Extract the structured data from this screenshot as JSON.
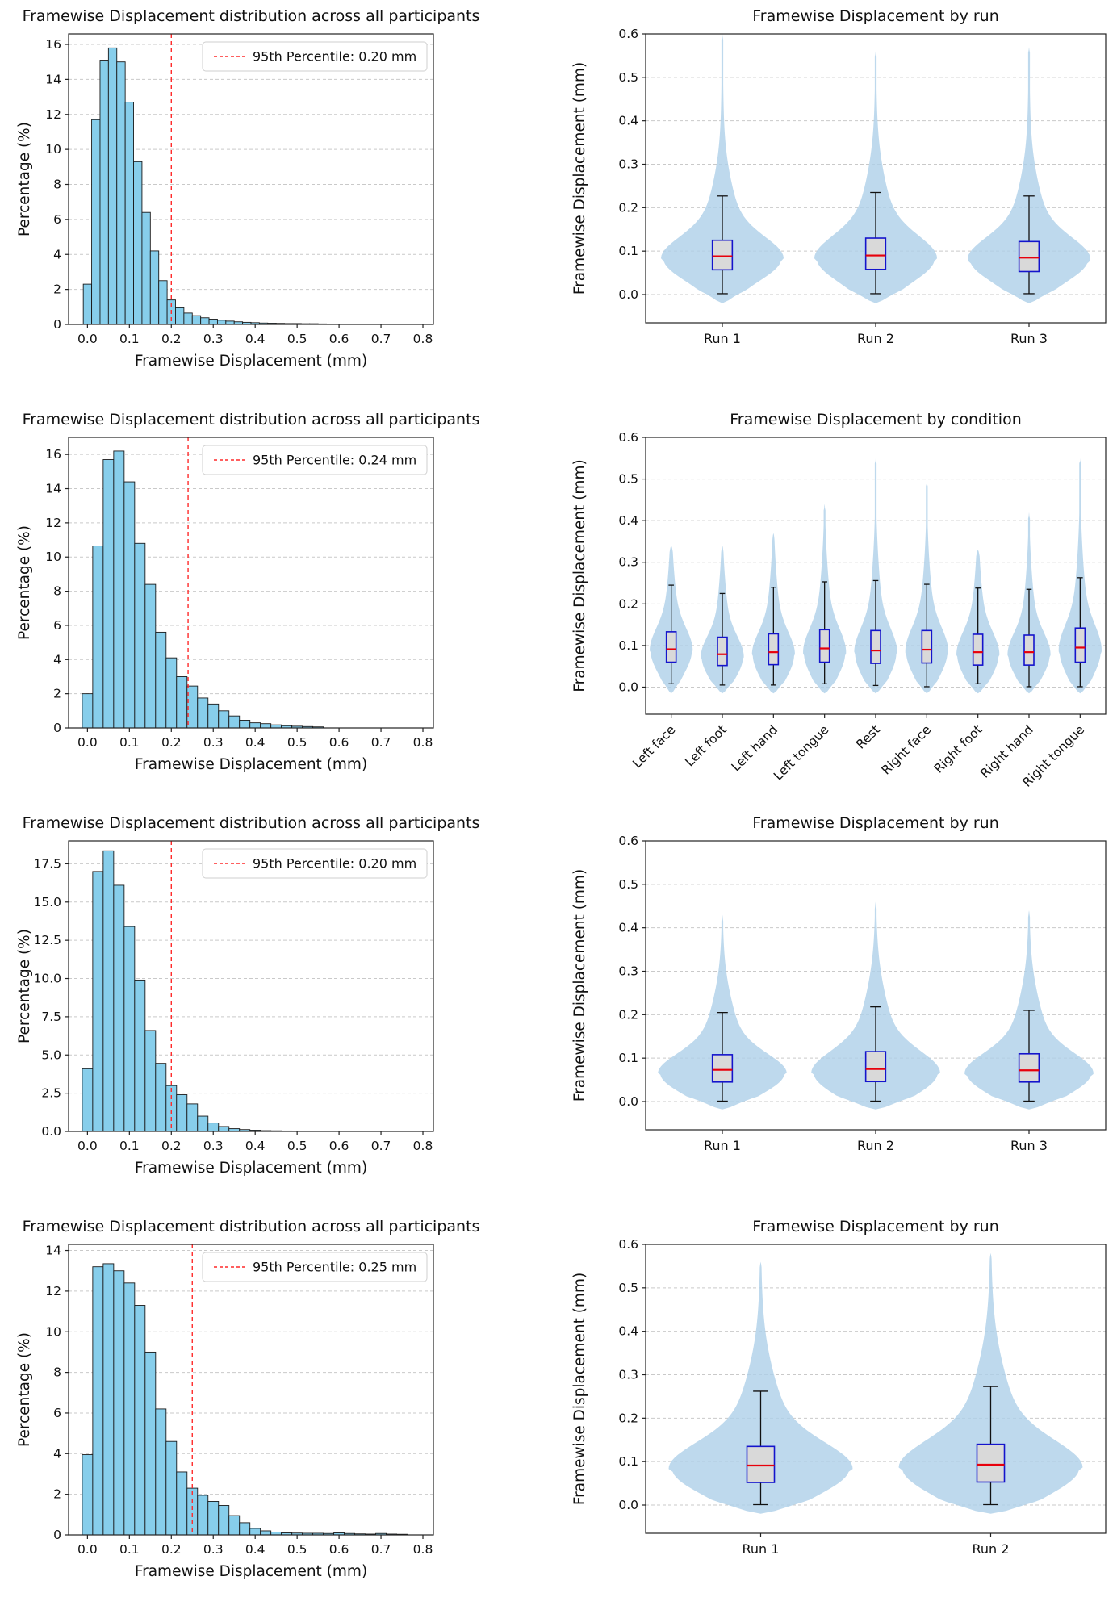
{
  "styles": {
    "bar_fill": "#87CEEB",
    "bar_edge": "#1a1a1a",
    "percentile_color": "#ff2a2a",
    "violin_fill": "#AECFE8",
    "box_fill": "#D9D9D9",
    "box_edge": "#1414CC",
    "median_color": "#E8000B",
    "whisker_color": "#111111",
    "grid_color": "#c9c9c9",
    "spine_color": "#222222",
    "text_color": "#111111"
  },
  "chart_data": [
    {
      "type": "histogram",
      "title": "Framewise Displacement distribution across all participants",
      "xlabel": "Framewise Displacement (mm)",
      "ylabel": "Percentage (%)",
      "legend": "95th Percentile: 0.20 mm",
      "percentile_value": 0.2,
      "bin_start": -0.01,
      "bin_width": 0.02,
      "values": [
        2.3,
        11.7,
        15.1,
        15.8,
        15.0,
        12.7,
        9.3,
        6.4,
        4.2,
        2.5,
        1.4,
        0.95,
        0.65,
        0.5,
        0.38,
        0.3,
        0.24,
        0.19,
        0.15,
        0.12,
        0.1,
        0.08,
        0.07,
        0.06,
        0.05,
        0.05,
        0.04,
        0.04,
        0.03
      ],
      "xlim": [
        -0.045,
        0.825
      ],
      "ylim": [
        0,
        16.6
      ],
      "xticks": [
        0.0,
        0.1,
        0.2,
        0.3,
        0.4,
        0.5,
        0.6,
        0.7,
        0.8
      ],
      "xtick_labels": [
        "0.0",
        "0.1",
        "0.2",
        "0.3",
        "0.4",
        "0.5",
        "0.6",
        "0.7",
        "0.8"
      ],
      "yticks": [
        0,
        2,
        4,
        6,
        8,
        10,
        12,
        14,
        16
      ],
      "ytick_labels": [
        "0",
        "2",
        "4",
        "6",
        "8",
        "10",
        "12",
        "14",
        "16"
      ],
      "grid": "y-dashed"
    },
    {
      "type": "violin",
      "title": "Framewise Displacement by run",
      "ylabel": "Framewise Displacement (mm)",
      "ylim": [
        -0.065,
        0.6
      ],
      "yticks": [
        0.0,
        0.1,
        0.2,
        0.3,
        0.4,
        0.5,
        0.6
      ],
      "ytick_labels": [
        "0.0",
        "0.1",
        "0.2",
        "0.3",
        "0.4",
        "0.5",
        "0.6"
      ],
      "label_rotation": 0,
      "violin_halfwidth": 0.4,
      "grid": "y-dashed",
      "violins": [
        {
          "label": "Run 1",
          "min": -0.02,
          "max": 0.6,
          "whisker_low": 0.002,
          "whisker_high": 0.227,
          "q1": 0.057,
          "median": 0.088,
          "q3": 0.125,
          "peak": 0.08
        },
        {
          "label": "Run 2",
          "min": -0.02,
          "max": 0.56,
          "whisker_low": 0.002,
          "whisker_high": 0.235,
          "q1": 0.058,
          "median": 0.09,
          "q3": 0.13,
          "peak": 0.08
        },
        {
          "label": "Run 3",
          "min": -0.02,
          "max": 0.57,
          "whisker_low": 0.002,
          "whisker_high": 0.227,
          "q1": 0.053,
          "median": 0.085,
          "q3": 0.122,
          "peak": 0.078
        }
      ]
    },
    {
      "type": "histogram",
      "title": "Framewise Displacement distribution across all participants",
      "xlabel": "Framewise Displacement (mm)",
      "ylabel": "Percentage (%)",
      "legend": "95th Percentile: 0.24 mm",
      "percentile_value": 0.24,
      "bin_start": -0.0125,
      "bin_width": 0.025,
      "values": [
        2.0,
        10.65,
        15.7,
        16.2,
        14.4,
        10.8,
        8.4,
        5.6,
        4.1,
        3.0,
        2.45,
        1.75,
        1.4,
        1.0,
        0.7,
        0.45,
        0.3,
        0.25,
        0.18,
        0.13,
        0.1,
        0.08,
        0.06
      ],
      "xlim": [
        -0.045,
        0.825
      ],
      "ylim": [
        0,
        17.0
      ],
      "xticks": [
        0.0,
        0.1,
        0.2,
        0.3,
        0.4,
        0.5,
        0.6,
        0.7,
        0.8
      ],
      "xtick_labels": [
        "0.0",
        "0.1",
        "0.2",
        "0.3",
        "0.4",
        "0.5",
        "0.6",
        "0.7",
        "0.8"
      ],
      "yticks": [
        0,
        2,
        4,
        6,
        8,
        10,
        12,
        14,
        16
      ],
      "ytick_labels": [
        "0",
        "2",
        "4",
        "6",
        "8",
        "10",
        "12",
        "14",
        "16"
      ],
      "grid": "y-dashed"
    },
    {
      "type": "violin",
      "title": "Framewise Displacement by condition",
      "ylabel": "Framewise Displacement (mm)",
      "ylim": [
        -0.065,
        0.6
      ],
      "yticks": [
        0.0,
        0.1,
        0.2,
        0.3,
        0.4,
        0.5,
        0.6
      ],
      "ytick_labels": [
        "0.0",
        "0.1",
        "0.2",
        "0.3",
        "0.4",
        "0.5",
        "0.6"
      ],
      "label_rotation": 45,
      "violin_halfwidth": 0.42,
      "grid": "y-dashed",
      "violins": [
        {
          "label": "Left face",
          "min": -0.015,
          "max": 0.34,
          "whisker_low": 0.008,
          "whisker_high": 0.245,
          "q1": 0.06,
          "median": 0.091,
          "q3": 0.133,
          "peak": 0.085
        },
        {
          "label": "Left foot",
          "min": -0.015,
          "max": 0.34,
          "whisker_low": 0.005,
          "whisker_high": 0.225,
          "q1": 0.052,
          "median": 0.079,
          "q3": 0.12,
          "peak": 0.07
        },
        {
          "label": "Left hand",
          "min": -0.015,
          "max": 0.37,
          "whisker_low": 0.005,
          "whisker_high": 0.24,
          "q1": 0.054,
          "median": 0.084,
          "q3": 0.128,
          "peak": 0.075
        },
        {
          "label": "Left tongue",
          "min": -0.015,
          "max": 0.44,
          "whisker_low": 0.008,
          "whisker_high": 0.253,
          "q1": 0.06,
          "median": 0.093,
          "q3": 0.138,
          "peak": 0.08
        },
        {
          "label": "Rest",
          "min": -0.015,
          "max": 0.55,
          "whisker_low": 0.004,
          "whisker_high": 0.256,
          "q1": 0.057,
          "median": 0.088,
          "q3": 0.136,
          "peak": 0.08
        },
        {
          "label": "Right face",
          "min": -0.015,
          "max": 0.5,
          "whisker_low": 0.001,
          "whisker_high": 0.247,
          "q1": 0.058,
          "median": 0.09,
          "q3": 0.136,
          "peak": 0.082
        },
        {
          "label": "Right foot",
          "min": -0.015,
          "max": 0.33,
          "whisker_low": 0.008,
          "whisker_high": 0.238,
          "q1": 0.053,
          "median": 0.084,
          "q3": 0.127,
          "peak": 0.075
        },
        {
          "label": "Right hand",
          "min": -0.015,
          "max": 0.42,
          "whisker_low": 0.001,
          "whisker_high": 0.235,
          "q1": 0.053,
          "median": 0.084,
          "q3": 0.125,
          "peak": 0.075
        },
        {
          "label": "Right tongue",
          "min": -0.015,
          "max": 0.55,
          "whisker_low": 0.001,
          "whisker_high": 0.263,
          "q1": 0.06,
          "median": 0.095,
          "q3": 0.142,
          "peak": 0.085
        }
      ]
    },
    {
      "type": "histogram",
      "title": "Framewise Displacement distribution across all participants",
      "xlabel": "Framewise Displacement (mm)",
      "ylabel": "Percentage (%)",
      "legend": "95th Percentile: 0.20 mm",
      "percentile_value": 0.2,
      "bin_start": -0.0125,
      "bin_width": 0.025,
      "values": [
        4.1,
        17.0,
        18.35,
        16.1,
        13.4,
        9.9,
        6.6,
        4.45,
        3.0,
        2.4,
        1.8,
        1.0,
        0.55,
        0.32,
        0.18,
        0.12,
        0.08,
        0.05,
        0.04,
        0.03,
        0.02,
        0.02
      ],
      "xlim": [
        -0.045,
        0.825
      ],
      "ylim": [
        0,
        19.0
      ],
      "xticks": [
        0.0,
        0.1,
        0.2,
        0.3,
        0.4,
        0.5,
        0.6,
        0.7,
        0.8
      ],
      "xtick_labels": [
        "0.0",
        "0.1",
        "0.2",
        "0.3",
        "0.4",
        "0.5",
        "0.6",
        "0.7",
        "0.8"
      ],
      "yticks": [
        0,
        2.5,
        5,
        7.5,
        10,
        12.5,
        15,
        17.5
      ],
      "ytick_labels": [
        "0.0",
        "2.5",
        "5.0",
        "7.5",
        "10.0",
        "12.5",
        "15.0",
        "17.5"
      ],
      "grid": "y-dashed"
    },
    {
      "type": "violin",
      "title": "Framewise Displacement by run",
      "ylabel": "Framewise Displacement (mm)",
      "ylim": [
        -0.065,
        0.6
      ],
      "yticks": [
        0.0,
        0.1,
        0.2,
        0.3,
        0.4,
        0.5,
        0.6
      ],
      "ytick_labels": [
        "0.0",
        "0.1",
        "0.2",
        "0.3",
        "0.4",
        "0.5",
        "0.6"
      ],
      "label_rotation": 0,
      "violin_halfwidth": 0.42,
      "grid": "y-dashed",
      "violins": [
        {
          "label": "Run 1",
          "min": -0.018,
          "max": 0.43,
          "whisker_low": 0.001,
          "whisker_high": 0.205,
          "q1": 0.045,
          "median": 0.073,
          "q3": 0.108,
          "peak": 0.062
        },
        {
          "label": "Run 2",
          "min": -0.018,
          "max": 0.46,
          "whisker_low": 0.001,
          "whisker_high": 0.218,
          "q1": 0.046,
          "median": 0.075,
          "q3": 0.115,
          "peak": 0.063
        },
        {
          "label": "Run 3",
          "min": -0.018,
          "max": 0.44,
          "whisker_low": 0.001,
          "whisker_high": 0.21,
          "q1": 0.045,
          "median": 0.072,
          "q3": 0.11,
          "peak": 0.062
        }
      ]
    },
    {
      "type": "histogram",
      "title": "Framewise Displacement distribution across all participants",
      "xlabel": "Framewise Displacement (mm)",
      "ylabel": "Percentage (%)",
      "legend": "95th Percentile: 0.25 mm",
      "percentile_value": 0.25,
      "bin_start": -0.0125,
      "bin_width": 0.025,
      "values": [
        3.95,
        13.2,
        13.35,
        13.0,
        12.4,
        11.3,
        9.0,
        6.2,
        4.6,
        3.1,
        2.3,
        1.95,
        1.65,
        1.45,
        0.95,
        0.6,
        0.32,
        0.2,
        0.14,
        0.1,
        0.09,
        0.08,
        0.08,
        0.07,
        0.1,
        0.07,
        0.05,
        0.04,
        0.07,
        0.04,
        0.03
      ],
      "xlim": [
        -0.045,
        0.825
      ],
      "ylim": [
        0,
        14.3
      ],
      "xticks": [
        0.0,
        0.1,
        0.2,
        0.3,
        0.4,
        0.5,
        0.6,
        0.7,
        0.8
      ],
      "xtick_labels": [
        "0.0",
        "0.1",
        "0.2",
        "0.3",
        "0.4",
        "0.5",
        "0.6",
        "0.7",
        "0.8"
      ],
      "yticks": [
        0,
        2,
        4,
        6,
        8,
        10,
        12,
        14
      ],
      "ytick_labels": [
        "0",
        "2",
        "4",
        "6",
        "8",
        "10",
        "12",
        "14"
      ],
      "grid": "y-dashed"
    },
    {
      "type": "violin",
      "title": "Framewise Displacement by run",
      "ylabel": "Framewise Displacement (mm)",
      "ylim": [
        -0.065,
        0.6
      ],
      "yticks": [
        0.0,
        0.1,
        0.2,
        0.3,
        0.4,
        0.5,
        0.6
      ],
      "ytick_labels": [
        "0.0",
        "0.1",
        "0.2",
        "0.3",
        "0.4",
        "0.5",
        "0.6"
      ],
      "label_rotation": 0,
      "violin_halfwidth": 0.4,
      "grid": "y-dashed",
      "violins": [
        {
          "label": "Run 1",
          "min": -0.02,
          "max": 0.56,
          "whisker_low": 0.001,
          "whisker_high": 0.262,
          "q1": 0.052,
          "median": 0.091,
          "q3": 0.135,
          "peak": 0.08
        },
        {
          "label": "Run 2",
          "min": -0.02,
          "max": 0.58,
          "whisker_low": 0.001,
          "whisker_high": 0.273,
          "q1": 0.053,
          "median": 0.093,
          "q3": 0.14,
          "peak": 0.082
        }
      ]
    }
  ]
}
